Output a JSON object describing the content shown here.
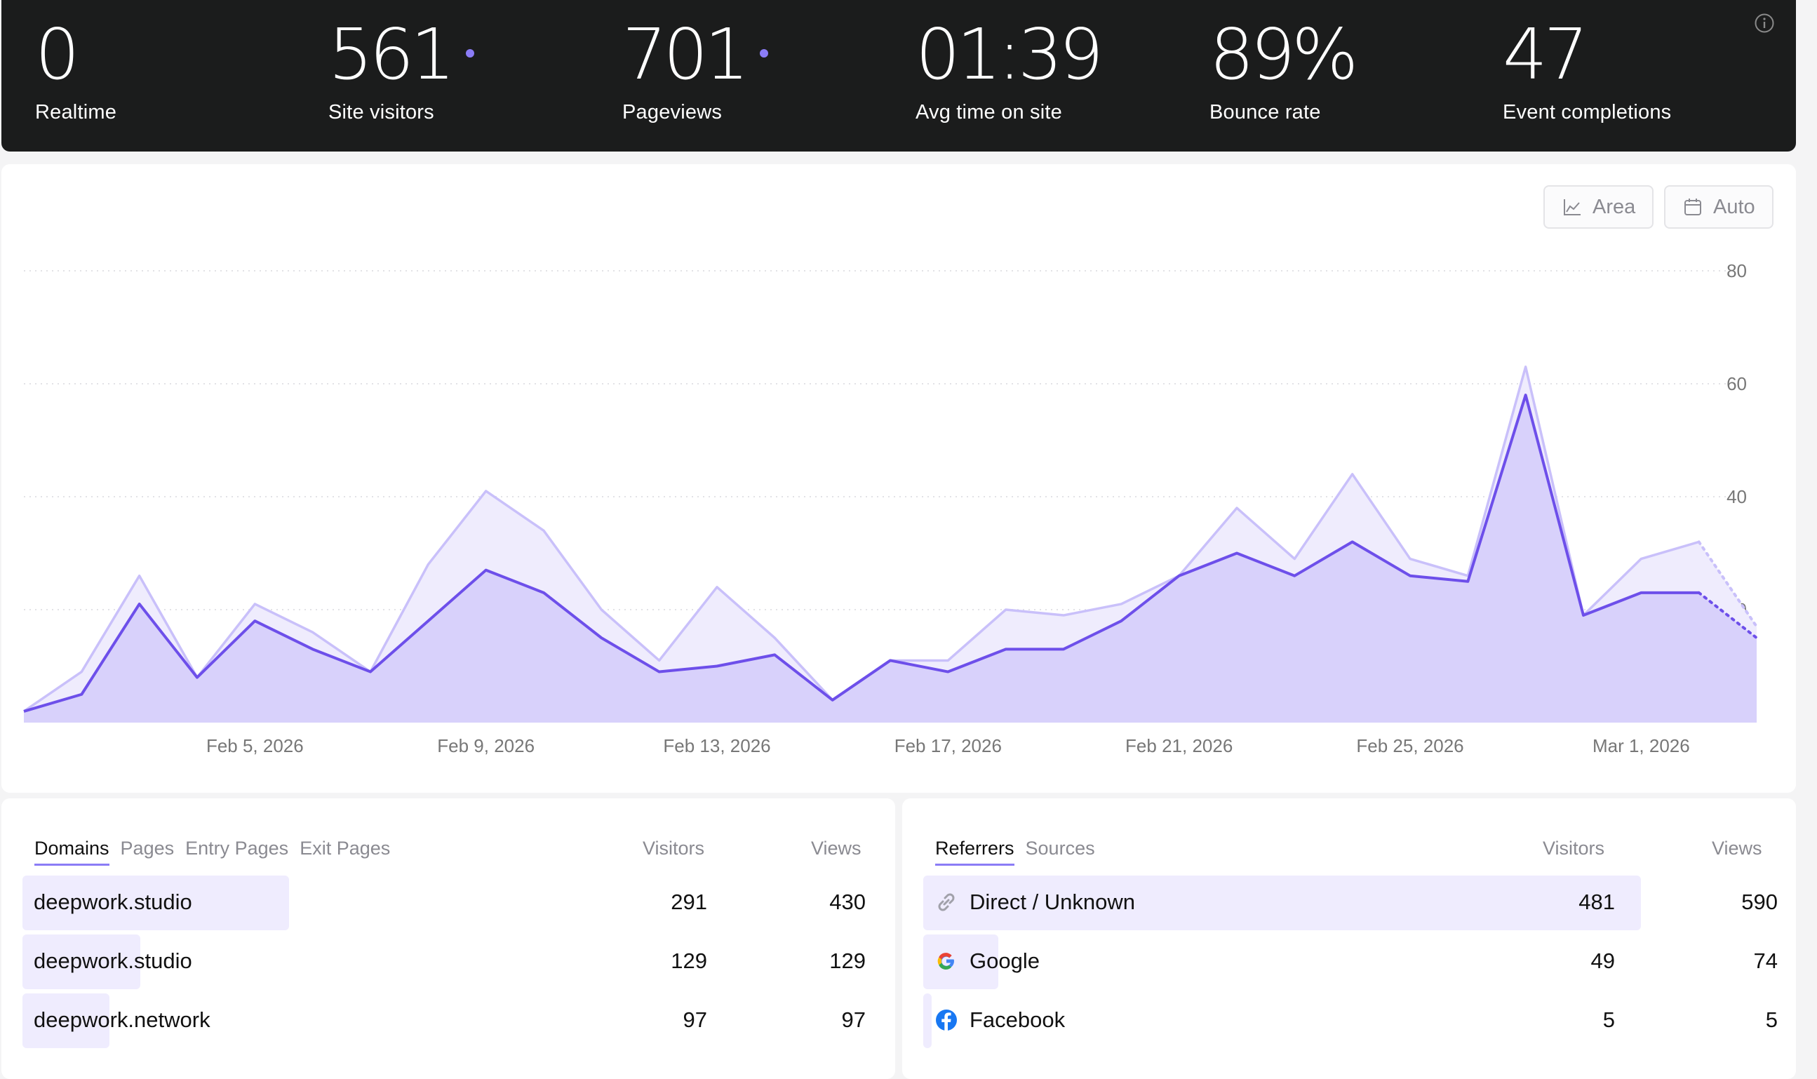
{
  "stats": [
    {
      "value": "0",
      "label": "Realtime",
      "live": false
    },
    {
      "value": "561",
      "label": "Site visitors",
      "live": true
    },
    {
      "value": "701",
      "label": "Pageviews",
      "live": true
    },
    {
      "value": "01:39",
      "label": "Avg time on site",
      "live": false
    },
    {
      "value": "89%",
      "label": "Bounce rate",
      "live": false
    },
    {
      "value": "47",
      "label": "Event completions",
      "live": false
    }
  ],
  "chart_controls": {
    "type_label": "Area",
    "period_label": "Auto"
  },
  "colors": {
    "accent": "#6d4fea",
    "accent_light": "#c9c0fa",
    "fill_visitors": "#d8d1fb",
    "fill_pageviews": "#efecfd",
    "dark_bg": "#1b1c1c"
  },
  "chart_data": {
    "type": "area",
    "x_tick_labels": [
      "Feb 5, 2026",
      "Feb 9, 2026",
      "Feb 13, 2026",
      "Feb 17, 2026",
      "Feb 21, 2026",
      "Feb 25, 2026",
      "Mar 1, 2026"
    ],
    "x": [
      "Feb 1",
      "Feb 2",
      "Feb 3",
      "Feb 4",
      "Feb 5",
      "Feb 6",
      "Feb 7",
      "Feb 8",
      "Feb 9",
      "Feb 10",
      "Feb 11",
      "Feb 12",
      "Feb 13",
      "Feb 14",
      "Feb 15",
      "Feb 16",
      "Feb 17",
      "Feb 18",
      "Feb 19",
      "Feb 20",
      "Feb 21",
      "Feb 22",
      "Feb 23",
      "Feb 24",
      "Feb 25",
      "Feb 26",
      "Feb 27",
      "Feb 28",
      "Mar 1",
      "Mar 2",
      "Mar 3"
    ],
    "y_ticks": [
      20,
      40,
      60,
      80
    ],
    "ylim": [
      0,
      80
    ],
    "grid": true,
    "series": [
      {
        "name": "Pageviews",
        "values": [
          2,
          9,
          26,
          8,
          21,
          16,
          9,
          28,
          41,
          34,
          20,
          11,
          24,
          15,
          4,
          11,
          11,
          20,
          19,
          21,
          26,
          38,
          29,
          44,
          29,
          26,
          63,
          19,
          29,
          32,
          17
        ]
      },
      {
        "name": "Site visitors",
        "values": [
          2,
          5,
          21,
          8,
          18,
          13,
          9,
          18,
          27,
          23,
          15,
          9,
          10,
          12,
          4,
          11,
          9,
          13,
          13,
          18,
          26,
          30,
          26,
          32,
          26,
          25,
          58,
          19,
          23,
          23,
          15
        ]
      }
    ],
    "partial_last_points": 1
  },
  "domains_panel": {
    "tabs": [
      "Domains",
      "Pages",
      "Entry Pages",
      "Exit Pages"
    ],
    "active_tab": "Domains",
    "col_visitors": "Visitors",
    "col_views": "Views",
    "rows": [
      {
        "name": "deepwork.studio",
        "visitors": "291",
        "views": "430",
        "share": 0.52
      },
      {
        "name": "deepwork.studio",
        "visitors": "129",
        "views": "129",
        "share": 0.23
      },
      {
        "name": "deepwork.network",
        "visitors": "97",
        "views": "97",
        "share": 0.17
      }
    ]
  },
  "referrers_panel": {
    "tabs": [
      "Referrers",
      "Sources"
    ],
    "active_tab": "Referrers",
    "col_visitors": "Visitors",
    "col_views": "Views",
    "rows": [
      {
        "name": "Direct / Unknown",
        "icon": "link-icon",
        "visitors": "481",
        "views": "590",
        "share": 0.86
      },
      {
        "name": "Google",
        "icon": "google-icon",
        "visitors": "49",
        "views": "74",
        "share": 0.09
      },
      {
        "name": "Facebook",
        "icon": "facebook-icon",
        "visitors": "5",
        "views": "5",
        "share": 0.01
      }
    ]
  }
}
